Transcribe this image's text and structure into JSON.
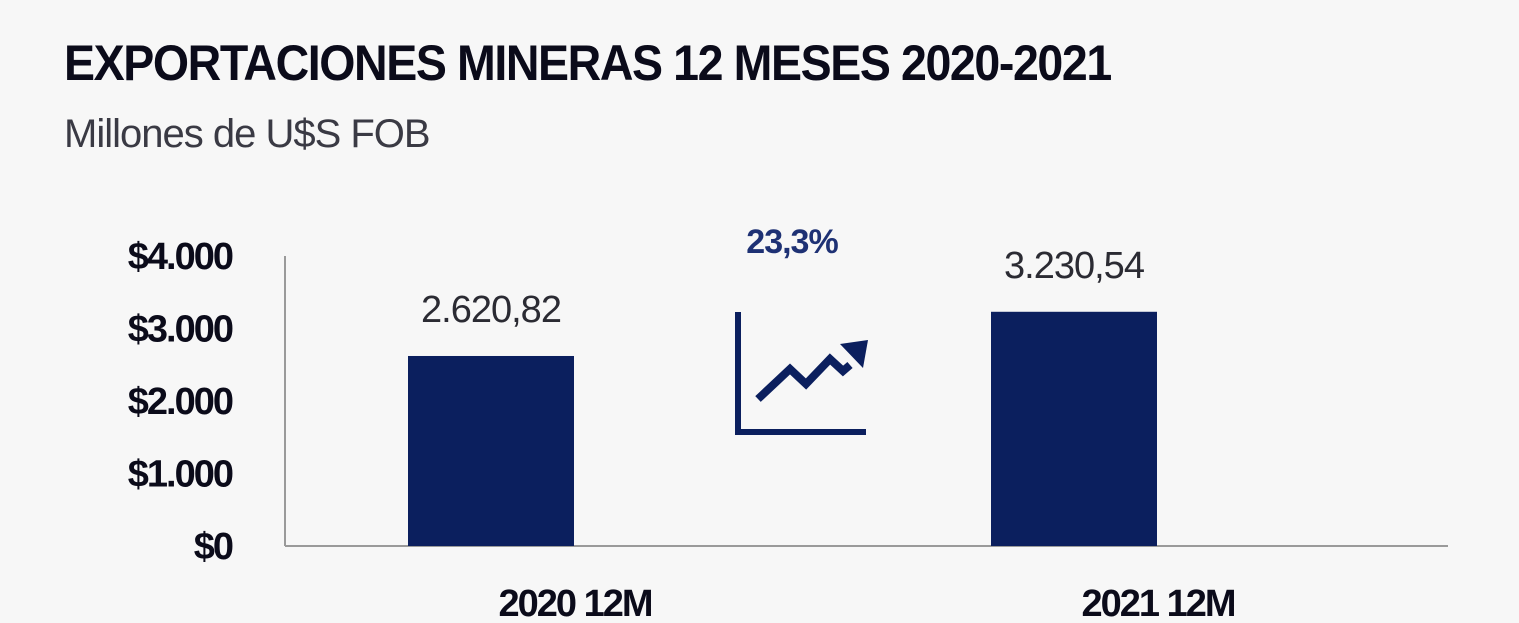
{
  "colors": {
    "bar": "#0b1f5e",
    "axis": "#9a9a9a",
    "icon": "#0b1f5e"
  },
  "chart_data": {
    "type": "bar",
    "title": "EXPORTACIONES MINERAS 12 MESES 2020-2021",
    "subtitle": "Millones de U$S FOB",
    "categories": [
      "2020 12M",
      "2021 12M"
    ],
    "values": [
      2620.82,
      3230.54
    ],
    "value_labels": [
      "2.620,82",
      "3.230,54"
    ],
    "ylim": [
      0,
      4000
    ],
    "yticks": [
      0,
      1000,
      2000,
      3000,
      4000
    ],
    "ytick_labels": [
      "$0",
      "$1.000",
      "$2.000",
      "$3.000",
      "$4.000"
    ],
    "grid": false,
    "annotation": {
      "text": "23,3%",
      "icon": "growth-chart-arrow-icon"
    }
  }
}
